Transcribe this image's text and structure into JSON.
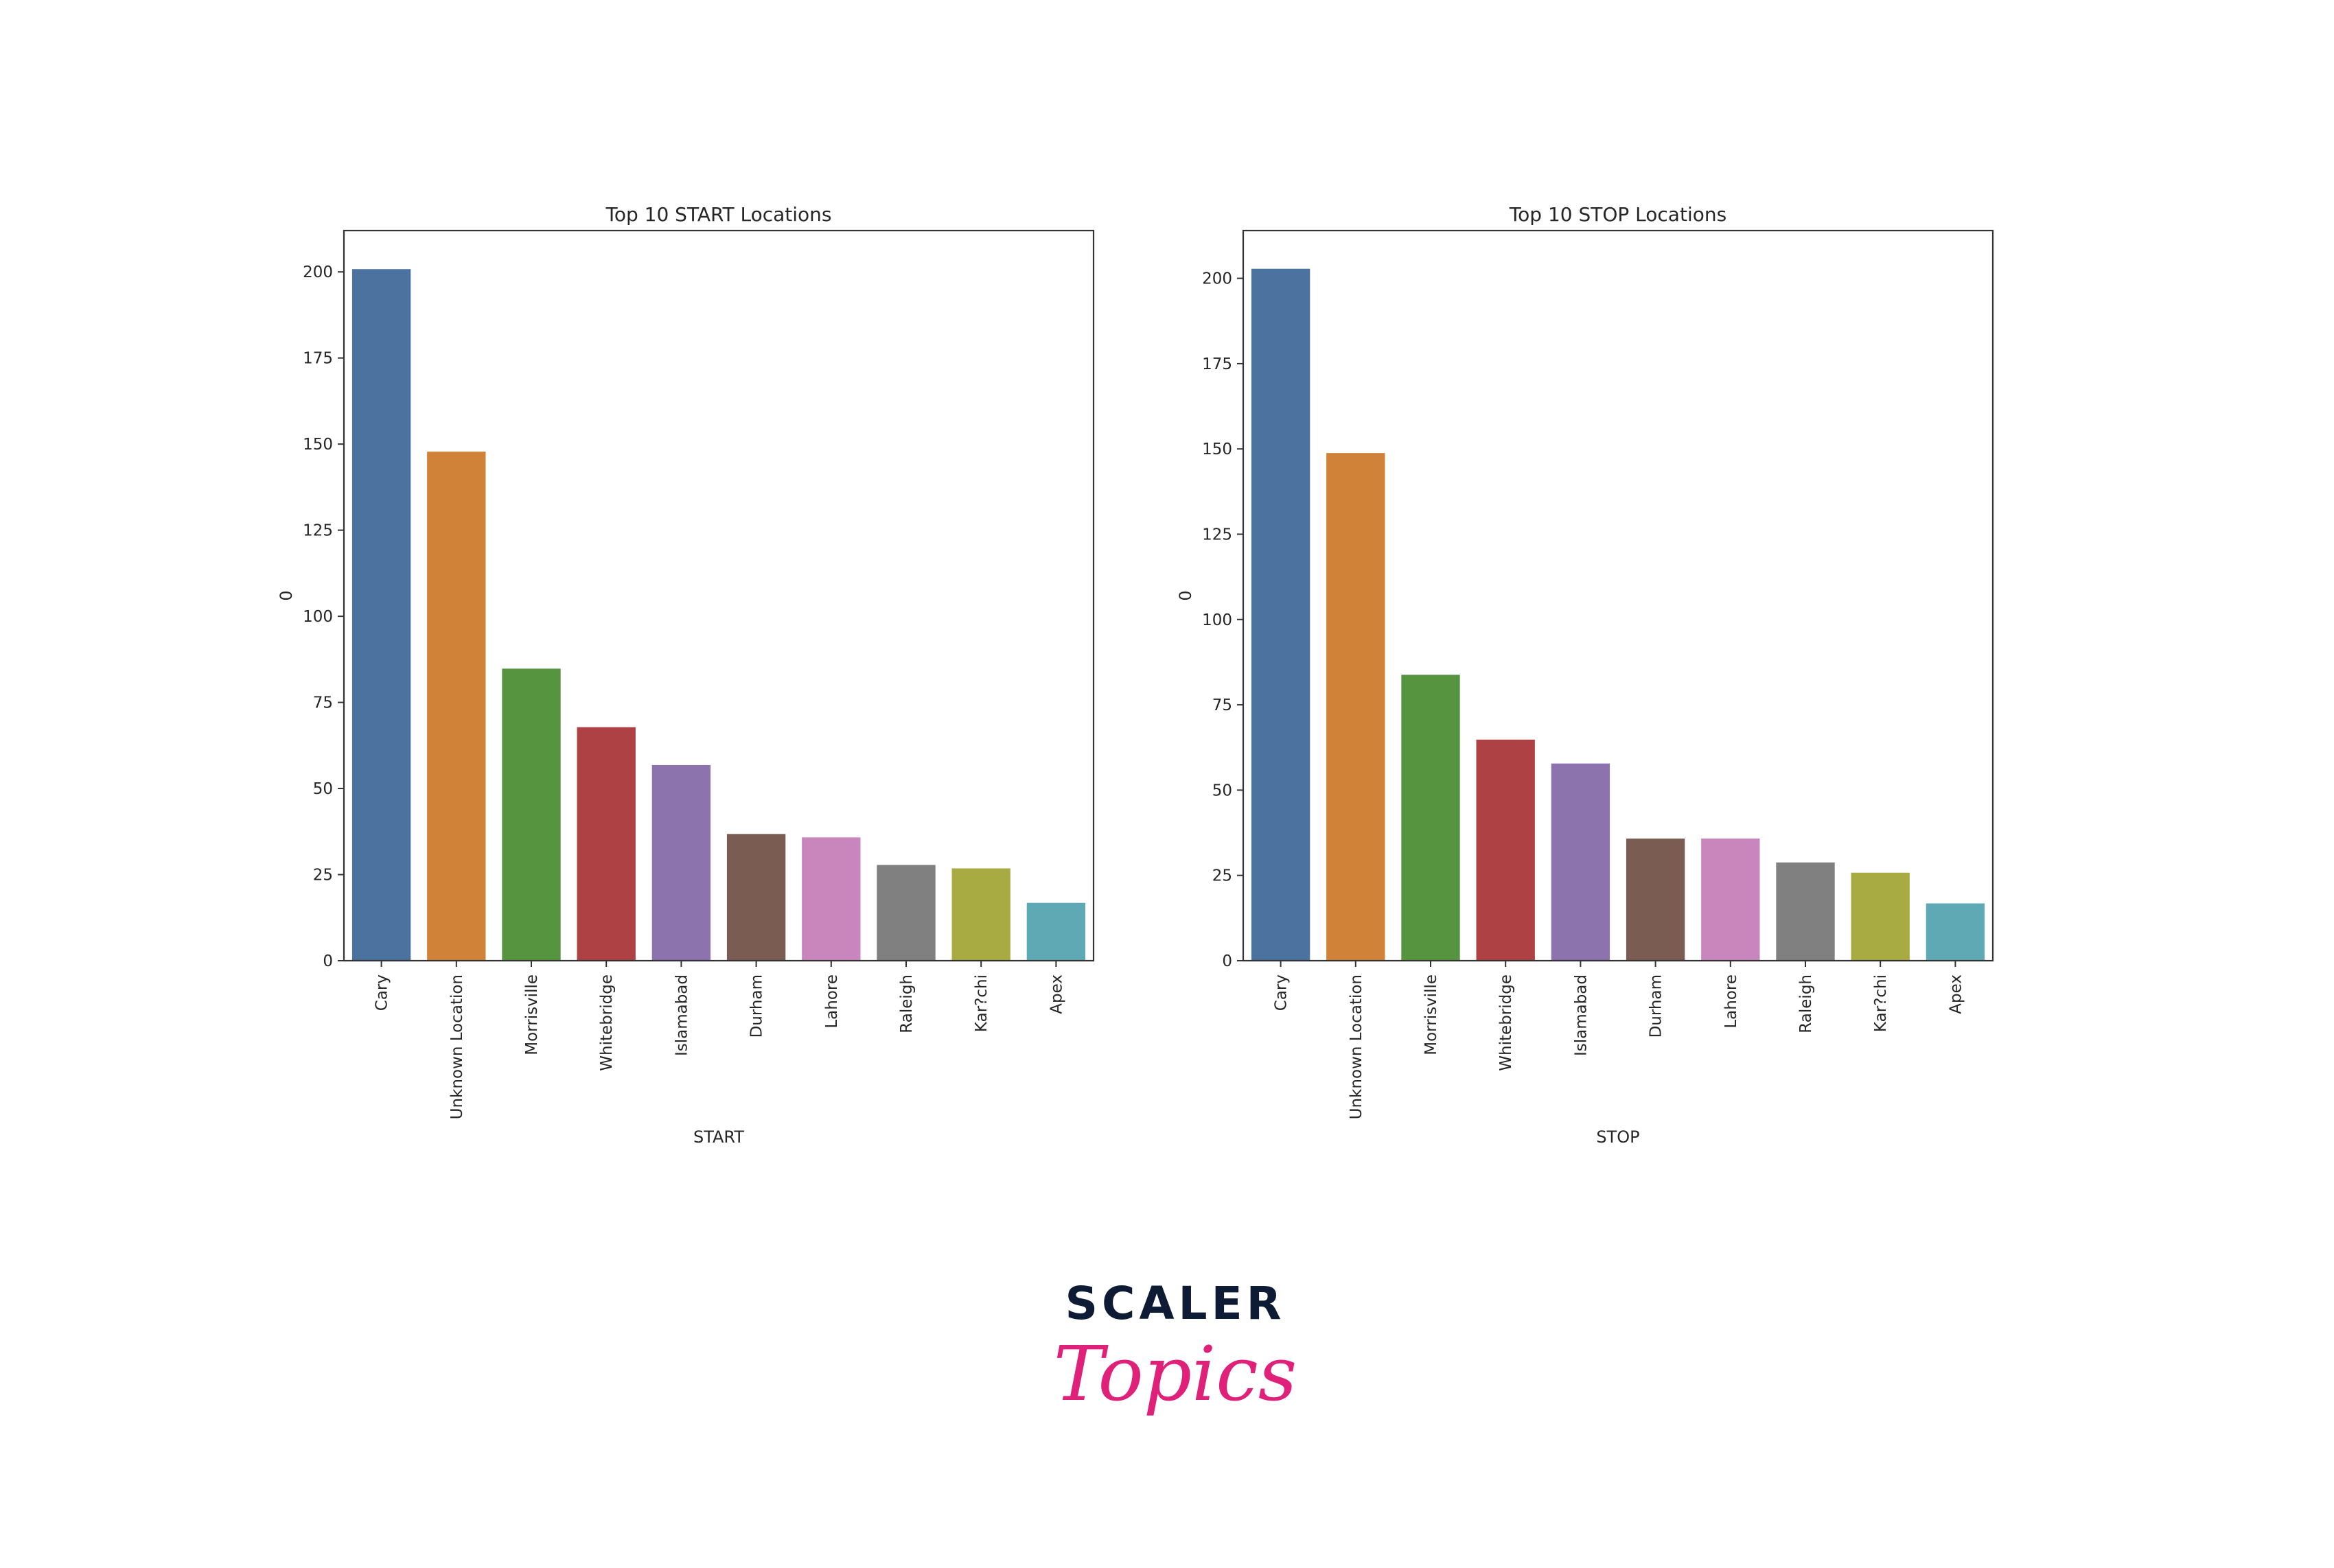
{
  "chart_data": [
    {
      "type": "bar",
      "title": "Top 10 START Locations",
      "xlabel": "START",
      "ylabel": "0",
      "categories": [
        "Cary",
        "Unknown Location",
        "Morrisville",
        "Whitebridge",
        "Islamabad",
        "Durham",
        "Lahore",
        "Raleigh",
        "Kar?chi",
        "Apex"
      ],
      "values": [
        201,
        148,
        85,
        68,
        57,
        37,
        36,
        28,
        27,
        17
      ],
      "ylim": [
        0,
        212
      ],
      "yticks": [
        0,
        25,
        50,
        75,
        100,
        125,
        150,
        175,
        200
      ],
      "grid": false
    },
    {
      "type": "bar",
      "title": "Top 10 STOP Locations",
      "xlabel": "STOP",
      "ylabel": "0",
      "categories": [
        "Cary",
        "Unknown Location",
        "Morrisville",
        "Whitebridge",
        "Islamabad",
        "Durham",
        "Lahore",
        "Raleigh",
        "Kar?chi",
        "Apex"
      ],
      "values": [
        203,
        149,
        84,
        65,
        58,
        36,
        36,
        29,
        26,
        17
      ],
      "ylim": [
        0,
        214
      ],
      "yticks": [
        0,
        25,
        50,
        75,
        100,
        125,
        150,
        175,
        200
      ],
      "grid": false
    }
  ],
  "colors": [
    "#4c72a0",
    "#d08338",
    "#56943f",
    "#ad4143",
    "#8d73ad",
    "#7b5c52",
    "#c986bd",
    "#808080",
    "#a8ab41",
    "#5fa9b4"
  ],
  "logo": {
    "line1": "SCALER",
    "line2": "Topics",
    "color1": "#0d1b35",
    "color2": "#e0217a"
  }
}
